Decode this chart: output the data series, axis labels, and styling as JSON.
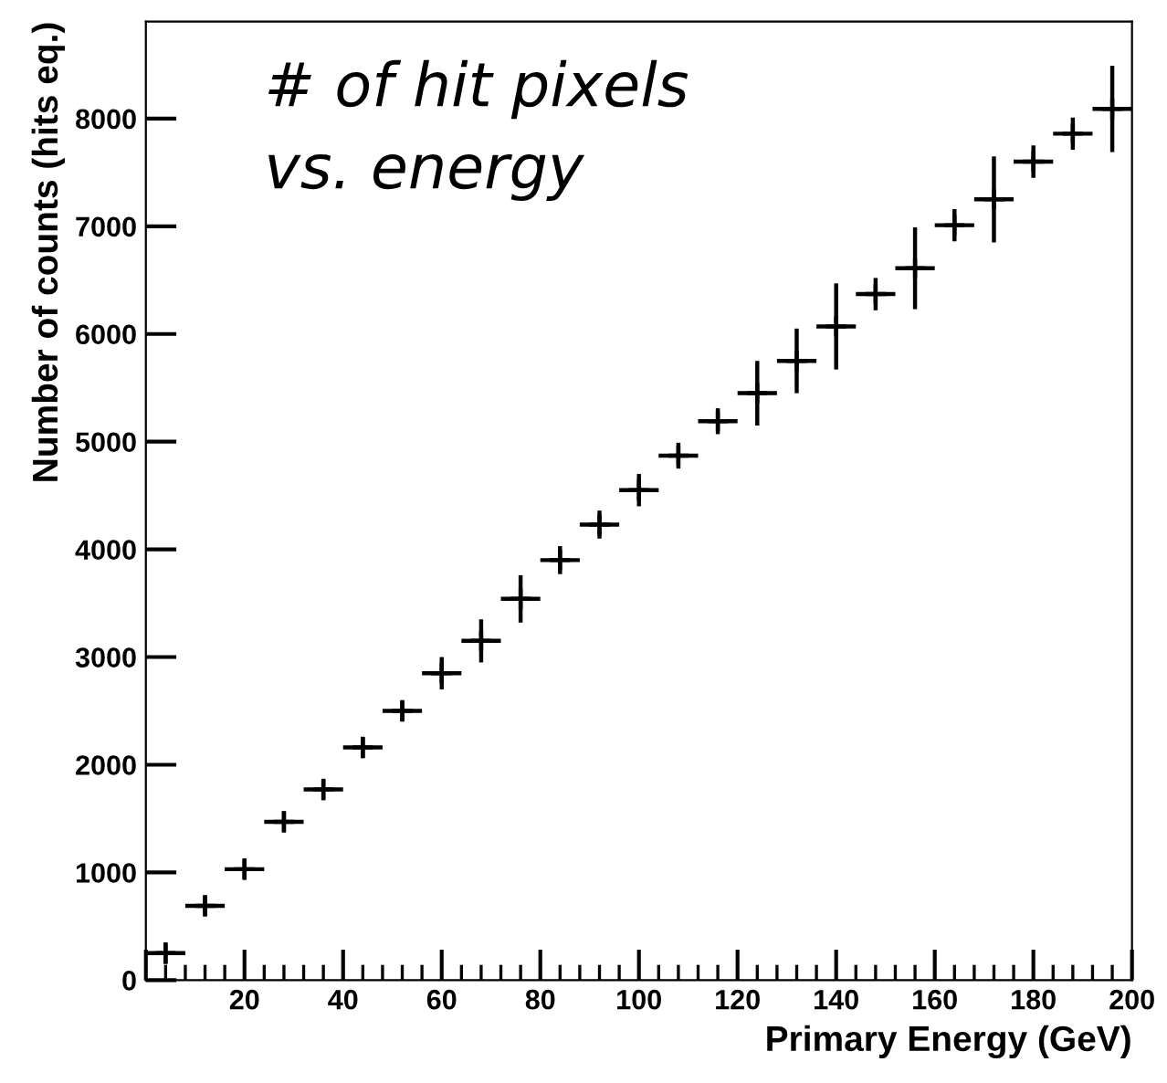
{
  "chart_data": {
    "type": "scatter",
    "xlabel": "Primary Energy (GeV)",
    "ylabel": "Number of counts (hits eq.)",
    "annotations": [
      "# of hit pixels\nvs. energy"
    ],
    "x": [
      4,
      12,
      20,
      28,
      36,
      44,
      52,
      60,
      68,
      76,
      84,
      92,
      100,
      108,
      116,
      124,
      132,
      140,
      148,
      156,
      164,
      172,
      180,
      188,
      196
    ],
    "series": [
      {
        "color": "#000000",
        "marker": "cross",
        "values": [
          250,
          690,
          1030,
          1470,
          1770,
          2160,
          2500,
          2850,
          3150,
          3540,
          3900,
          4230,
          4550,
          4870,
          5190,
          5450,
          5750,
          6070,
          6370,
          6610,
          7010,
          7250,
          7600,
          7860,
          8090
        ],
        "errors": [
          100,
          100,
          100,
          100,
          100,
          100,
          100,
          150,
          200,
          220,
          130,
          130,
          150,
          120,
          120,
          300,
          300,
          400,
          150,
          380,
          150,
          400,
          150,
          150,
          400
        ],
        "xerrors": [
          4,
          4,
          4,
          4,
          4,
          4,
          4,
          4,
          4,
          4,
          4,
          4,
          4,
          4,
          4,
          4,
          4,
          4,
          4,
          4,
          4,
          4,
          4,
          4,
          4
        ]
      }
    ],
    "xlim": [
      0,
      200
    ],
    "xticks": [
      {
        "value": 0,
        "label": null
      },
      20,
      40,
      60,
      80,
      100,
      120,
      140,
      160,
      180,
      200
    ],
    "ylim": [
      0,
      8900
    ],
    "yticks": [
      0,
      1000,
      2000,
      3000,
      4000,
      5000,
      6000,
      7000,
      8000
    ],
    "grid": false,
    "legend": false
  }
}
